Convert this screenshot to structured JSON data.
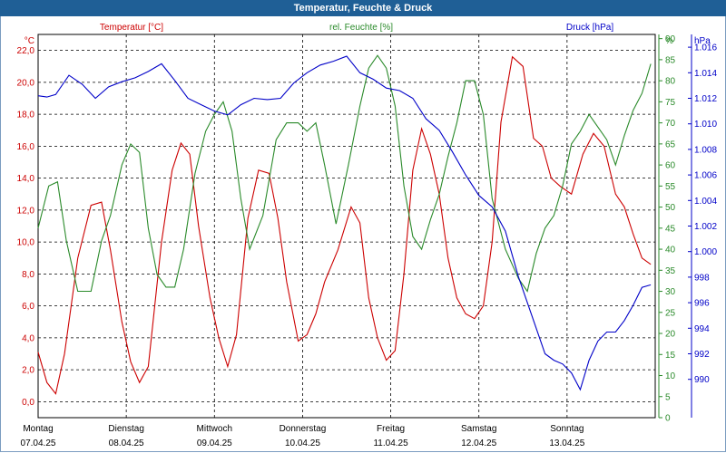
{
  "title": "Temperatur, Feuchte & Druck",
  "colors": {
    "temperature": "#cc0000",
    "humidity": "#2a8a2a",
    "pressure": "#0000c8",
    "titlebar": "#1f5f96",
    "axis": "#000000"
  },
  "chart_data": {
    "type": "line",
    "grid": true,
    "x_range_days": [
      0,
      7
    ],
    "x_tick_days": [
      "Montag",
      "Dienstag",
      "Mittwoch",
      "Donnerstag",
      "Freitag",
      "Samstag",
      "Sonntag"
    ],
    "x_tick_dates": [
      "07.04.25",
      "08.04.25",
      "09.04.25",
      "10.04.25",
      "11.04.25",
      "12.04.25",
      "13.04.25"
    ],
    "axes": {
      "temperature": {
        "label": "Temperatur [°C]",
        "unit": "°C",
        "ylim": [
          -1,
          23
        ],
        "ticks": [
          "0,0",
          "2,0",
          "4,0",
          "6,0",
          "8,0",
          "10,0",
          "12,0",
          "14,0",
          "16,0",
          "18,0",
          "20,0",
          "22,0"
        ]
      },
      "humidity": {
        "label": "rel. Feuchte [%]",
        "unit": "%",
        "ylim": [
          0,
          91
        ],
        "ticks": [
          "0",
          "5",
          "10",
          "15",
          "20",
          "25",
          "30",
          "35",
          "40",
          "45",
          "50",
          "55",
          "60",
          "65",
          "70",
          "75",
          "80",
          "85",
          "90"
        ],
        "top_unit": "%"
      },
      "pressure": {
        "label": "Druck [hPa]",
        "unit": "hPa",
        "ylim": [
          987.0,
          1017.0
        ],
        "ticks": [
          "990",
          "992",
          "994",
          "996",
          "998",
          "1.000",
          "1.002",
          "1.004",
          "1.006",
          "1.008",
          "1.010",
          "1.012",
          "1.014",
          "1.016"
        ]
      }
    },
    "series": [
      {
        "name": "Temperatur [°C]",
        "axis": "temperature",
        "x": [
          0,
          0.1,
          0.2,
          0.3,
          0.45,
          0.6,
          0.72,
          0.82,
          0.95,
          1.05,
          1.15,
          1.25,
          1.4,
          1.52,
          1.62,
          1.72,
          1.82,
          1.95,
          2.05,
          2.15,
          2.25,
          2.38,
          2.5,
          2.62,
          2.72,
          2.82,
          2.95,
          3.05,
          3.15,
          3.25,
          3.4,
          3.55,
          3.65,
          3.75,
          3.85,
          3.95,
          4.05,
          4.15,
          4.25,
          4.35,
          4.45,
          4.55,
          4.65,
          4.75,
          4.85,
          4.95,
          5.05,
          5.15,
          5.25,
          5.38,
          5.5,
          5.62,
          5.72,
          5.82,
          5.92,
          6.05,
          6.18,
          6.3,
          6.42,
          6.55,
          6.65,
          6.75,
          6.85,
          6.95
        ],
        "values": [
          3.1,
          1.2,
          0.5,
          3.0,
          9.0,
          12.3,
          12.5,
          9.5,
          5.0,
          2.5,
          1.2,
          2.2,
          10.0,
          14.5,
          16.2,
          15.5,
          11.0,
          6.5,
          4.0,
          2.2,
          4.2,
          11.5,
          14.5,
          14.3,
          11.5,
          7.5,
          3.8,
          4.2,
          5.5,
          7.5,
          9.5,
          12.2,
          11.2,
          6.5,
          4.0,
          2.6,
          3.2,
          8.0,
          14.5,
          17.1,
          15.5,
          13.0,
          9.0,
          6.5,
          5.5,
          5.2,
          6.0,
          10.0,
          17.5,
          21.6,
          21.0,
          16.5,
          16.0,
          14.0,
          13.5,
          13.0,
          15.5,
          16.8,
          16.0,
          13.0,
          12.2,
          10.5,
          9.0,
          8.6
        ]
      },
      {
        "name": "rel. Feuchte [%]",
        "axis": "humidity",
        "x": [
          0,
          0.12,
          0.22,
          0.32,
          0.45,
          0.6,
          0.72,
          0.82,
          0.95,
          1.05,
          1.15,
          1.25,
          1.35,
          1.45,
          1.55,
          1.65,
          1.78,
          1.9,
          2.0,
          2.1,
          2.2,
          2.3,
          2.4,
          2.55,
          2.7,
          2.82,
          2.95,
          3.05,
          3.15,
          3.25,
          3.38,
          3.52,
          3.65,
          3.75,
          3.85,
          3.95,
          4.05,
          4.15,
          4.25,
          4.35,
          4.45,
          4.55,
          4.65,
          4.75,
          4.85,
          4.95,
          5.05,
          5.15,
          5.3,
          5.45,
          5.55,
          5.65,
          5.75,
          5.85,
          5.95,
          6.05,
          6.15,
          6.25,
          6.35,
          6.45,
          6.55,
          6.65,
          6.75,
          6.85,
          6.95
        ],
        "values": [
          45,
          55,
          56,
          42,
          30,
          30,
          42,
          48,
          60,
          65,
          63,
          45,
          34,
          31,
          31,
          40,
          58,
          68,
          72,
          75,
          68,
          52,
          40,
          48,
          66,
          70,
          70,
          68,
          70,
          60,
          46,
          60,
          74,
          83,
          86,
          83,
          74,
          55,
          43,
          40,
          47,
          53,
          62,
          70,
          80,
          80,
          72,
          52,
          40,
          33,
          30,
          39,
          45,
          48,
          55,
          65,
          68,
          72,
          69,
          66,
          60,
          67,
          73,
          77,
          84
        ]
      },
      {
        "name": "Druck [hPa]",
        "axis": "pressure",
        "x": [
          0,
          0.1,
          0.2,
          0.35,
          0.5,
          0.65,
          0.8,
          0.95,
          1.1,
          1.25,
          1.4,
          1.55,
          1.7,
          1.85,
          2.0,
          2.15,
          2.3,
          2.45,
          2.6,
          2.75,
          2.9,
          3.05,
          3.2,
          3.35,
          3.5,
          3.65,
          3.8,
          3.95,
          4.1,
          4.25,
          4.4,
          4.55,
          4.7,
          4.85,
          5.0,
          5.15,
          5.3,
          5.45,
          5.6,
          5.75,
          5.85,
          5.95,
          6.05,
          6.15,
          6.25,
          6.35,
          6.45,
          6.55,
          6.65,
          6.75,
          6.85,
          6.95
        ],
        "values": [
          1012.2,
          1012.1,
          1012.3,
          1013.8,
          1013.1,
          1012.0,
          1012.9,
          1013.3,
          1013.6,
          1014.1,
          1014.7,
          1013.4,
          1012.0,
          1011.5,
          1011.0,
          1010.7,
          1011.5,
          1012.0,
          1011.9,
          1012.0,
          1013.2,
          1014.0,
          1014.6,
          1014.9,
          1015.3,
          1014.0,
          1013.5,
          1012.8,
          1012.6,
          1012.0,
          1010.4,
          1009.5,
          1007.8,
          1006.0,
          1004.4,
          1003.5,
          1001.6,
          998.0,
          995.0,
          992.0,
          991.5,
          991.2,
          990.5,
          989.2,
          991.5,
          993.0,
          993.7,
          993.7,
          994.6,
          995.8,
          997.2,
          997.4
        ]
      }
    ]
  }
}
